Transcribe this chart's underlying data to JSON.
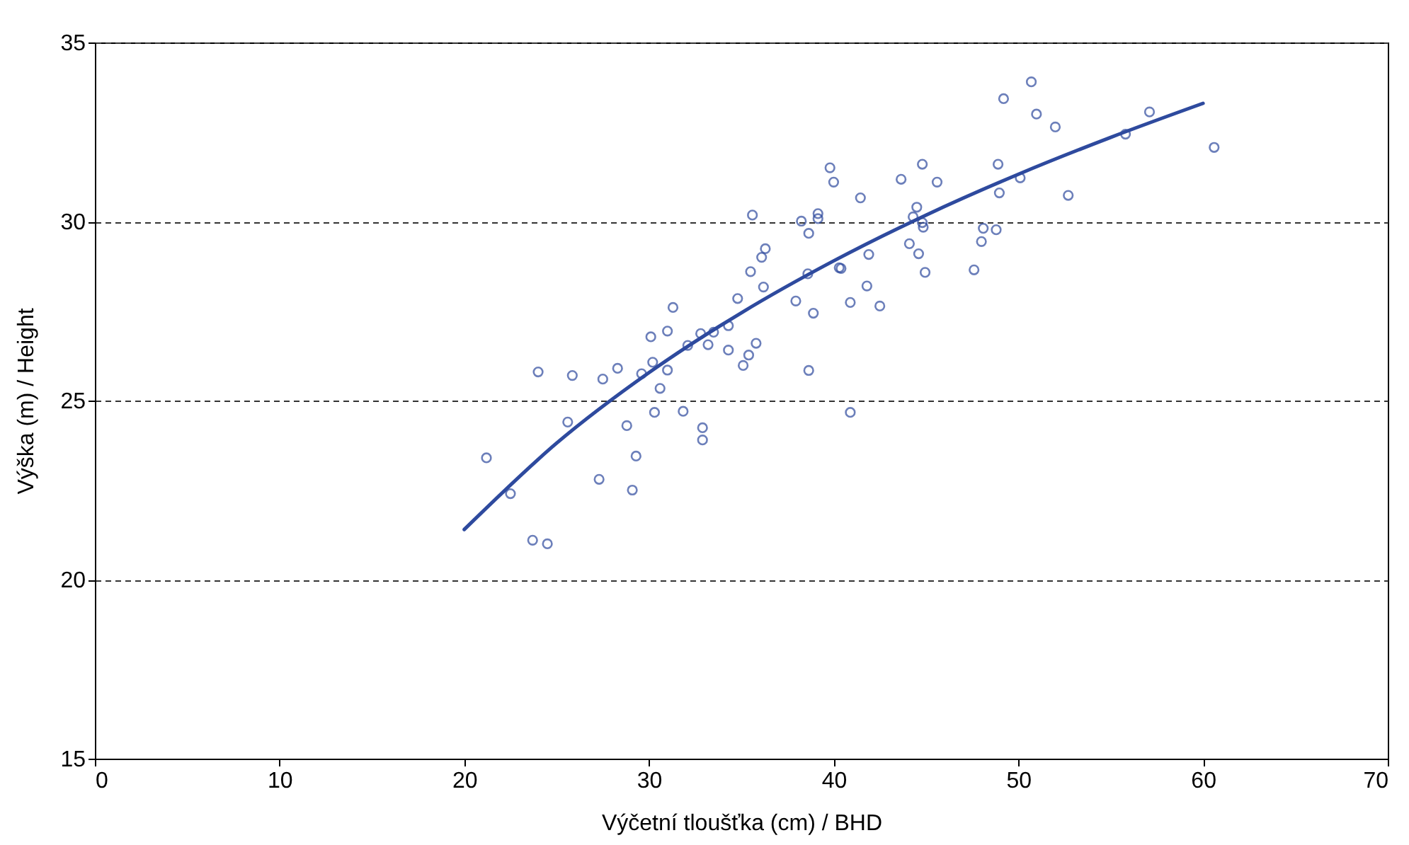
{
  "chart_data": {
    "type": "scatter",
    "xlabel": "Výčetní tloušťka (cm) / BHD",
    "ylabel": "Výška (m) / Height",
    "xlim": [
      0,
      70
    ],
    "ylim": [
      15,
      35
    ],
    "xticks": [
      0,
      10,
      20,
      30,
      40,
      50,
      60,
      70
    ],
    "yticks": [
      15,
      20,
      25,
      30,
      35
    ],
    "grid": "y",
    "marker": "circle",
    "series": [
      {
        "color": "#2e4a9e",
        "x": [
          21.2,
          22.5,
          23.7,
          24.5,
          24.0,
          25.85,
          25.6,
          27.3,
          29.1,
          29.3,
          28.8,
          27.5,
          28.3,
          29.6,
          30.3,
          30.6,
          30.2,
          31.0,
          30.1,
          31.0,
          31.3,
          31.85,
          32.9,
          32.9,
          32.1,
          32.8,
          33.2,
          33.5,
          34.3,
          34.3,
          35.1,
          35.4,
          35.8,
          34.8,
          36.2,
          35.5,
          36.1,
          36.3,
          35.6,
          37.95,
          38.9,
          38.6,
          38.65,
          38.25,
          39.15,
          39.15,
          39.8,
          40.0,
          38.65,
          40.9,
          40.3,
          40.4,
          40.9,
          41.8,
          42.5,
          41.9,
          41.45,
          43.65,
          44.8,
          45.6,
          44.5,
          44.3,
          44.8,
          44.85,
          44.1,
          44.6,
          44.95,
          47.6,
          48.0,
          48.1,
          48.8,
          48.9,
          48.97,
          50.1,
          52.0,
          49.2,
          50.7,
          50.98,
          52.7,
          55.8,
          57.1,
          60.6
        ],
        "values": [
          23.4,
          22.4,
          21.1,
          21.0,
          25.8,
          25.7,
          24.4,
          22.8,
          22.5,
          23.45,
          24.3,
          25.6,
          25.9,
          25.75,
          24.67,
          25.34,
          26.07,
          25.85,
          26.78,
          26.94,
          27.6,
          24.7,
          24.24,
          23.9,
          26.54,
          26.87,
          26.56,
          26.91,
          27.09,
          26.41,
          25.98,
          26.27,
          26.6,
          27.85,
          28.17,
          28.6,
          29.0,
          29.24,
          30.18,
          27.78,
          27.44,
          28.54,
          29.67,
          30.01,
          30.22,
          30.08,
          31.5,
          31.1,
          25.84,
          24.67,
          28.71,
          28.69,
          27.74,
          28.2,
          27.64,
          29.08,
          30.66,
          31.18,
          31.6,
          31.1,
          30.4,
          30.13,
          29.97,
          29.84,
          29.38,
          29.1,
          28.58,
          28.65,
          29.44,
          29.81,
          29.77,
          31.6,
          30.8,
          31.22,
          32.64,
          33.43,
          33.9,
          33.0,
          30.73,
          32.44,
          33.06,
          32.07
        ]
      },
      {
        "type": "line",
        "color": "#2e4a9e",
        "marker": "none",
        "x": [
          20,
          25,
          30,
          35,
          40,
          45,
          50,
          55,
          60
        ],
        "values": [
          21.4,
          23.81,
          25.78,
          27.45,
          28.9,
          30.18,
          31.32,
          32.35,
          33.3
        ]
      }
    ]
  }
}
